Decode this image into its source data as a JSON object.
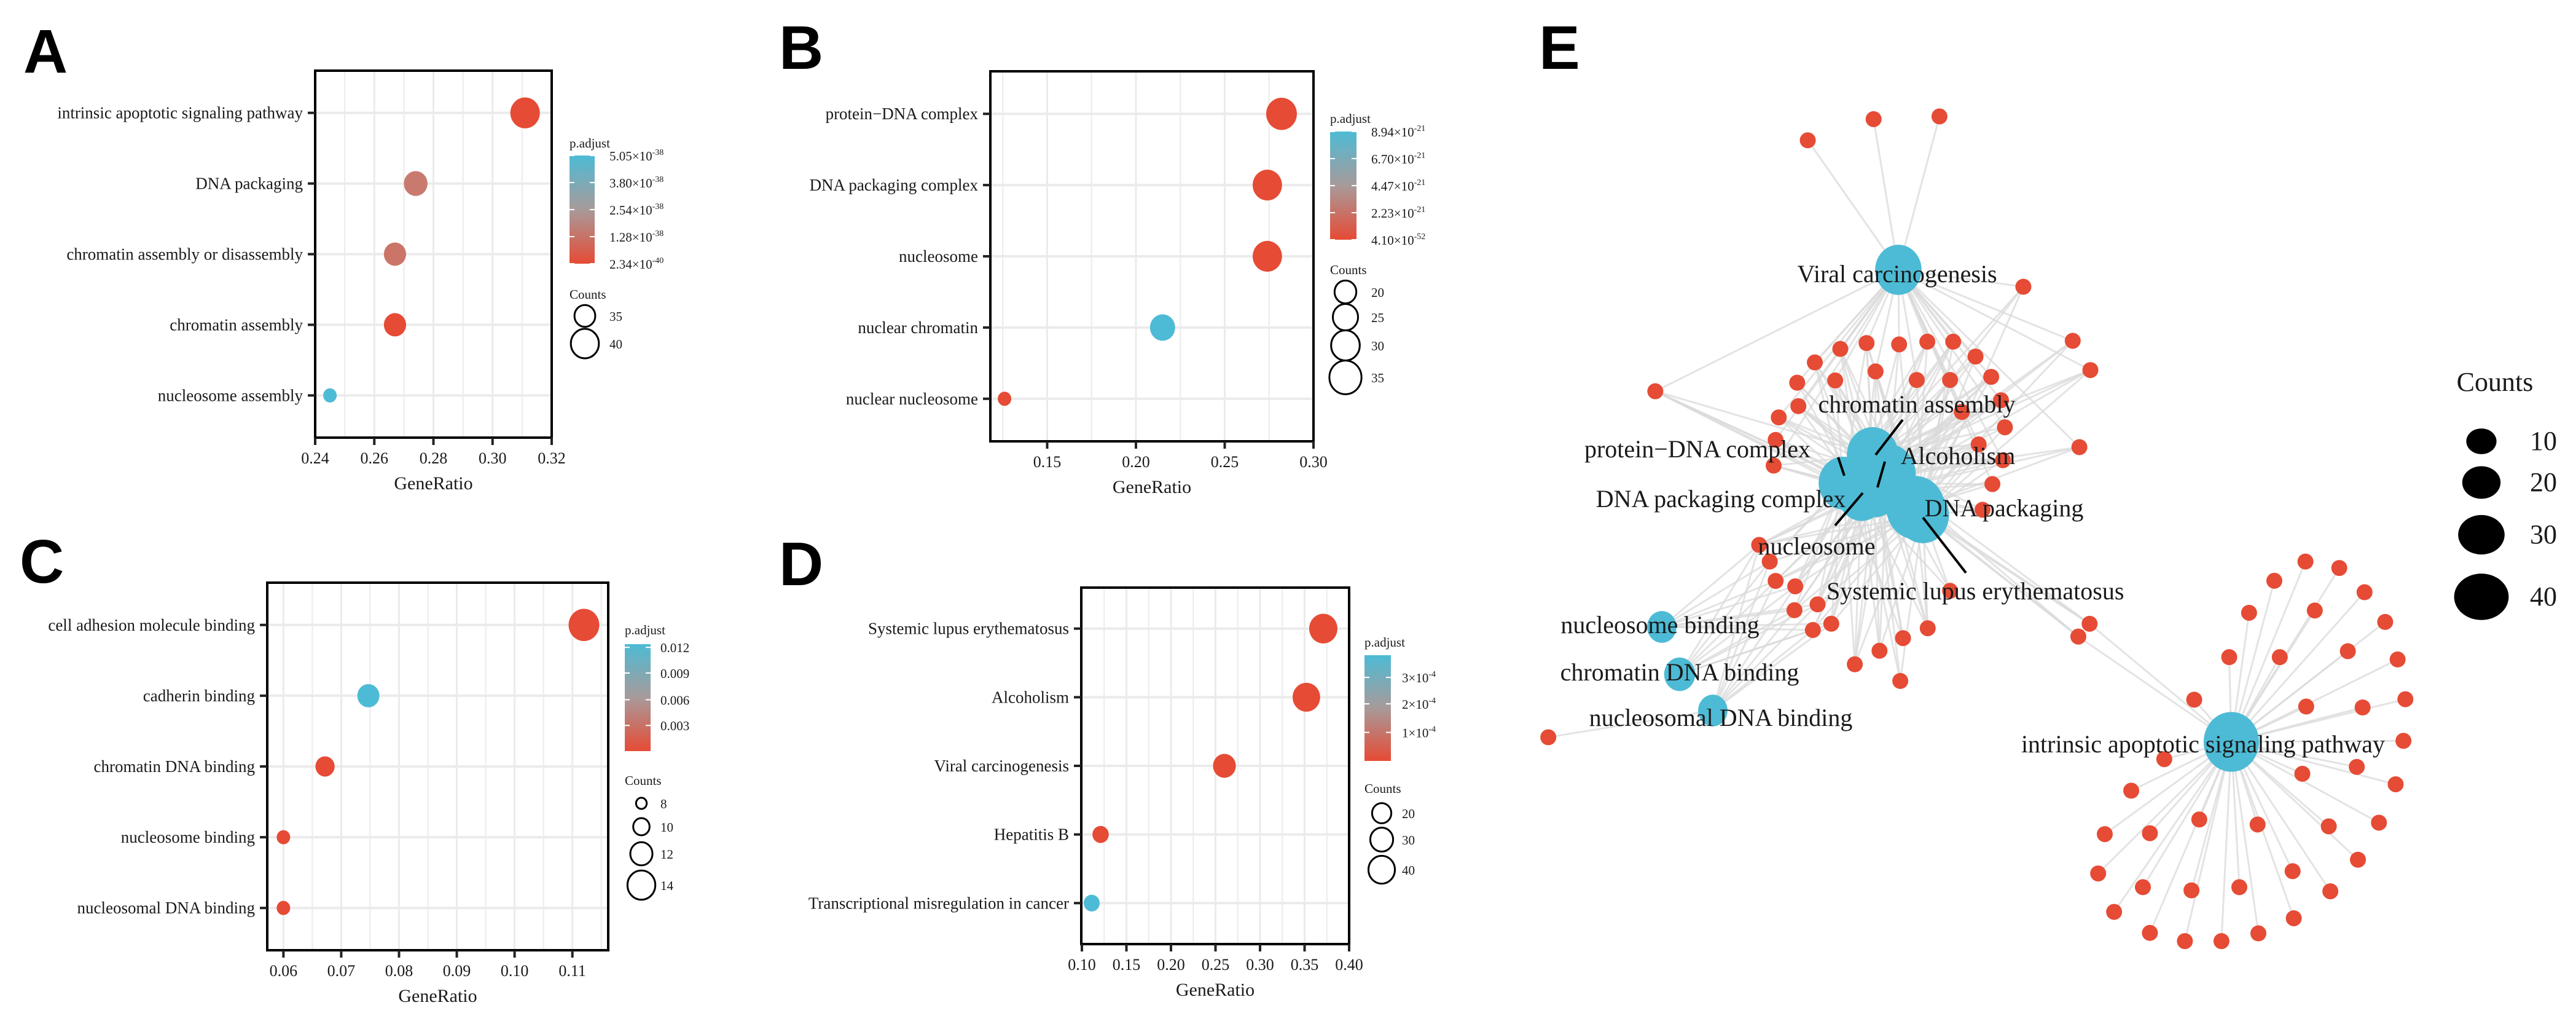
{
  "figure": {
    "panel_labels": [
      "A",
      "B",
      "C",
      "D",
      "E"
    ]
  },
  "chart_data": [
    {
      "panel": "A",
      "type": "scatter",
      "title": "",
      "categories": [
        "intrinsic apoptotic signaling pathway",
        "DNA packaging",
        "chromatin assembly or disassembly",
        "chromatin assembly",
        "nucleosome assembly"
      ],
      "x": [
        0.311,
        0.274,
        0.267,
        0.267,
        0.245
      ],
      "counts": [
        41,
        37,
        36,
        36,
        30
      ],
      "colors": [
        "#e64b35",
        "#c97a6f",
        "#cb7468",
        "#e64b35",
        "#4dbbd5"
      ],
      "xlabel": "GeneRatio",
      "ylabel": "",
      "xlim": [
        0.24,
        0.32
      ],
      "xticks": [
        0.24,
        0.26,
        0.28,
        0.3,
        0.32
      ],
      "xtick_labels": [
        "0.24",
        "0.26",
        "0.28",
        "0.30",
        "0.32"
      ],
      "grid": true,
      "legend": {
        "color_title": "p.adjust",
        "color_labels": [
          "5.05×10^-38",
          "3.80×10^-38",
          "2.54×10^-38",
          "1.28×10^-38",
          "2.34×10^-40"
        ],
        "size_title": "Counts",
        "size_values": [
          35,
          40
        ],
        "size_labels": [
          "35",
          "40"
        ]
      }
    },
    {
      "panel": "B",
      "type": "scatter",
      "title": "",
      "categories": [
        "protein−DNA complex",
        "DNA packaging complex",
        "nucleosome",
        "nuclear chromatin",
        "nuclear nucleosome"
      ],
      "x": [
        0.282,
        0.274,
        0.274,
        0.215,
        0.126
      ],
      "counts": [
        33,
        31,
        31,
        25,
        8
      ],
      "colors": [
        "#e64b35",
        "#e64b35",
        "#e64b35",
        "#4dbbd5",
        "#e64b35"
      ],
      "xlabel": "GeneRatio",
      "ylabel": "",
      "xlim": [
        0.118,
        0.3
      ],
      "xticks": [
        0.15,
        0.2,
        0.25,
        0.3
      ],
      "xtick_labels": [
        "0.15",
        "0.20",
        "0.25",
        "0.30"
      ],
      "grid": true,
      "legend": {
        "color_title": "p.adjust",
        "color_labels": [
          "8.94×10^-21",
          "6.70×10^-21",
          "4.47×10^-21",
          "2.23×10^-21",
          "4.10×10^-52"
        ],
        "size_title": "Counts",
        "size_values": [
          20,
          25,
          30,
          35
        ],
        "size_labels": [
          "20",
          "25",
          "30",
          "35"
        ]
      }
    },
    {
      "panel": "C",
      "type": "scatter",
      "title": "",
      "categories": [
        "cell adhesion molecule binding",
        "cadherin binding",
        "chromatin DNA binding",
        "nucleosome binding",
        "nucleosomal DNA binding"
      ],
      "x": [
        0.112,
        0.0747,
        0.0672,
        0.06,
        0.06
      ],
      "counts": [
        15,
        12,
        11,
        9,
        9
      ],
      "colors": [
        "#e64b35",
        "#4dbbd5",
        "#e64b35",
        "#e64b35",
        "#e64b35"
      ],
      "xlabel": "GeneRatio",
      "ylabel": "",
      "xlim": [
        0.0572,
        0.1162
      ],
      "xticks": [
        0.06,
        0.07,
        0.08,
        0.09,
        0.1,
        0.11
      ],
      "xtick_labels": [
        "0.06",
        "0.07",
        "0.08",
        "0.09",
        "0.10",
        "0.11"
      ],
      "grid": true,
      "legend": {
        "color_title": "p.adjust",
        "color_labels": [
          "0.012",
          "0.009",
          "0.006",
          "0.003"
        ],
        "size_title": "Counts",
        "size_values": [
          8,
          10,
          12,
          14
        ],
        "size_labels": [
          "8",
          "10",
          "12",
          "14"
        ]
      }
    },
    {
      "panel": "D",
      "type": "scatter",
      "title": "",
      "categories": [
        "Systemic lupus erythematosus",
        "Alcoholism",
        "Viral carcinogenesis",
        "Hepatitis B",
        "Transcriptional misregulation in cancer"
      ],
      "x": [
        0.371,
        0.352,
        0.26,
        0.121,
        0.111
      ],
      "counts": [
        45,
        43,
        30,
        12,
        11
      ],
      "colors": [
        "#e64b35",
        "#e64b35",
        "#e64b35",
        "#e64b35",
        "#4dbbd5"
      ],
      "xlabel": "GeneRatio",
      "ylabel": "",
      "xlim": [
        0.0993,
        0.4
      ],
      "xticks": [
        0.1,
        0.15,
        0.2,
        0.25,
        0.3,
        0.35,
        0.4
      ],
      "xtick_labels": [
        "0.10",
        "0.15",
        "0.20",
        "0.25",
        "0.30",
        "0.35",
        "0.40"
      ],
      "grid": true,
      "legend": {
        "color_title": "p.adjust",
        "color_labels": [
          "3×10^-4",
          "2×10^-4",
          "1×10^-4"
        ],
        "size_title": "Counts",
        "size_values": [
          20,
          30,
          40
        ],
        "size_labels": [
          "20",
          "30",
          "40"
        ]
      }
    },
    {
      "panel": "E",
      "type": "network",
      "term_color": "#4dbbd5",
      "gene_color": "#e64b35",
      "edge_color": "#d9d9d9",
      "terms": [
        {
          "label": "Viral carcinogenesis",
          "count": 30
        },
        {
          "label": "chromatin assembly",
          "count": 36
        },
        {
          "label": "Alcoholism",
          "count": 43
        },
        {
          "label": "protein−DNA complex",
          "count": 33
        },
        {
          "label": "DNA packaging complex",
          "count": 31
        },
        {
          "label": "nucleosome",
          "count": 31
        },
        {
          "label": "DNA packaging",
          "count": 37
        },
        {
          "label": "Systemic lupus erythematosus",
          "count": 45
        },
        {
          "label": "nucleosome binding",
          "count": 9
        },
        {
          "label": "chromatin DNA binding",
          "count": 11
        },
        {
          "label": "nucleosomal DNA binding",
          "count": 9
        },
        {
          "label": "intrinsic apoptotic signaling pathway",
          "count": 41
        }
      ],
      "legend": {
        "size_title": "Counts",
        "size_values": [
          10,
          20,
          30,
          40
        ],
        "size_labels": [
          "10",
          "20",
          "30",
          "40"
        ]
      }
    }
  ]
}
